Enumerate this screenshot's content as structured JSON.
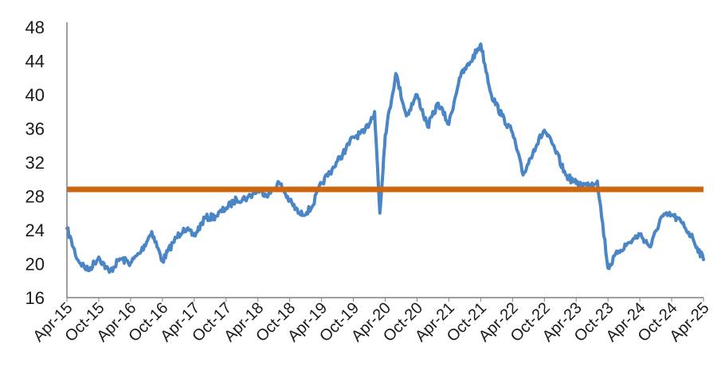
{
  "chart_data": {
    "type": "line",
    "title": "",
    "xlabel": "",
    "ylabel": "",
    "ylim": [
      16,
      48
    ],
    "y_ticks": [
      16,
      20,
      24,
      28,
      32,
      36,
      40,
      44,
      48
    ],
    "x_ticks": [
      "Apr-15",
      "Oct-15",
      "Apr-16",
      "Oct-16",
      "Apr-17",
      "Oct-17",
      "Apr-18",
      "Oct-18",
      "Apr-19",
      "Oct-19",
      "Apr-20",
      "Oct-20",
      "Apr-21",
      "Oct-21",
      "Apr-22",
      "Oct-22",
      "Apr-23",
      "Oct-23",
      "Apr-24",
      "Oct-24",
      "Apr-25"
    ],
    "grid": false,
    "legend": "none",
    "series": [
      {
        "color": "#4a86c5",
        "x": [
          "Apr-15",
          "Jun-15",
          "Aug-15",
          "Oct-15",
          "Dec-15",
          "Feb-16",
          "Apr-16",
          "Jun-16",
          "Aug-16",
          "Oct-16",
          "Dec-16",
          "Feb-17",
          "Apr-17",
          "Jun-17",
          "Aug-17",
          "Oct-17",
          "Dec-17",
          "Feb-18",
          "Apr-18",
          "Jun-18",
          "Aug-18",
          "Oct-18",
          "Dec-18",
          "Feb-19",
          "Apr-19",
          "Jun-19",
          "Aug-19",
          "Oct-19",
          "Dec-19",
          "Feb-20",
          "Mar-20",
          "Apr-20",
          "Jun-20",
          "Aug-20",
          "Oct-20",
          "Dec-20",
          "Feb-21",
          "Apr-21",
          "Jun-21",
          "Aug-21",
          "Oct-21",
          "Dec-21",
          "Feb-22",
          "Apr-22",
          "Jun-22",
          "Aug-22",
          "Oct-22",
          "Dec-22",
          "Feb-23",
          "Apr-23",
          "Jun-23",
          "Aug-23",
          "Oct-23",
          "Dec-23",
          "Feb-24",
          "Apr-24",
          "Jun-24",
          "Aug-24",
          "Oct-24",
          "Dec-24",
          "Feb-25",
          "Apr-25"
        ],
        "y": [
          24.2,
          20.5,
          19.2,
          20.8,
          19.0,
          20.6,
          20.1,
          21.5,
          23.8,
          20.3,
          22.5,
          24.2,
          23.3,
          25.4,
          25.6,
          26.6,
          27.6,
          27.8,
          28.7,
          28.2,
          29.6,
          27.4,
          25.8,
          26.5,
          29.5,
          31.2,
          33.0,
          35.0,
          35.5,
          38.0,
          26.0,
          35.2,
          42.5,
          37.5,
          40.0,
          36.2,
          39.0,
          36.5,
          42.0,
          43.8,
          46.0,
          40.0,
          37.5,
          35.5,
          30.5,
          33.5,
          35.8,
          33.5,
          30.5,
          29.5,
          29.3,
          29.8,
          19.5,
          21.5,
          22.5,
          23.5,
          22.0,
          25.5,
          25.8,
          24.8,
          23.0,
          20.5
        ]
      },
      {
        "color": "#cc6610",
        "x": [
          "Apr-15",
          "Apr-25"
        ],
        "y": [
          28.8,
          28.8
        ]
      }
    ]
  }
}
